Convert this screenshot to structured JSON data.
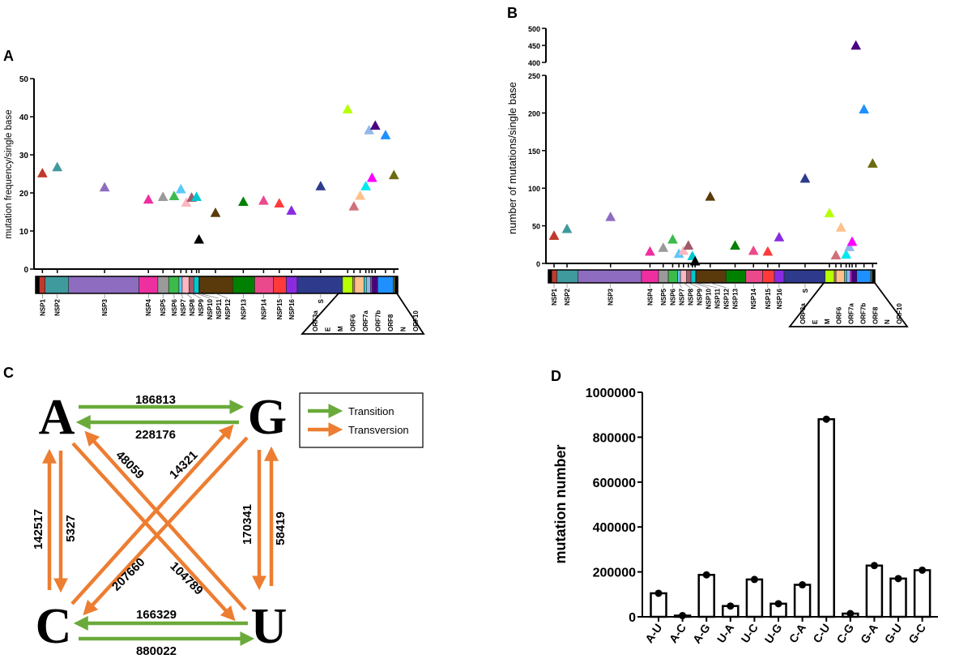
{
  "panel_labels": [
    "A",
    "B",
    "C",
    "D"
  ],
  "chart_data": [
    {
      "id": "A",
      "type": "scatter",
      "ylabel": "mutation frequency/single base",
      "ylim": [
        0,
        50
      ],
      "yticks": [
        0,
        10,
        20,
        30,
        40,
        50
      ],
      "genes": [
        {
          "name": "NSP1",
          "color": "#c0392b",
          "value": 25.2
        },
        {
          "name": "NSP2",
          "color": "#3f9a9e",
          "value": 26.8
        },
        {
          "name": "NSP3",
          "color": "#8e6cc0",
          "value": 21.5
        },
        {
          "name": "NSP4",
          "color": "#ee2fa0",
          "value": 18.3
        },
        {
          "name": "NSP5",
          "color": "#9a9a9a",
          "value": 19.0
        },
        {
          "name": "NSP6",
          "color": "#3cba4a",
          "value": 19.2
        },
        {
          "name": "NSP7",
          "color": "#5ac8fa",
          "value": 21.0
        },
        {
          "name": "NSP8",
          "color": "#ffb6c1",
          "value": 17.5
        },
        {
          "name": "NSP9",
          "color": "#a05a6a",
          "value": 18.8
        },
        {
          "name": "NSP10",
          "color": "#00c8d0",
          "value": 19.0
        },
        {
          "name": "NSP11",
          "color": "#000000",
          "value": 7.8
        },
        {
          "name": "NSP12",
          "color": "#5a3a0a",
          "value": 14.8
        },
        {
          "name": "NSP13",
          "color": "#008000",
          "value": 17.7
        },
        {
          "name": "NSP14",
          "color": "#ea4a8c",
          "value": 18.0
        },
        {
          "name": "NSP15",
          "color": "#ff3a3a",
          "value": 17.3
        },
        {
          "name": "NSP16",
          "color": "#8a2be2",
          "value": 15.4
        },
        {
          "name": "S",
          "color": "#2e3a8c",
          "value": 21.8
        },
        {
          "name": "ORF3a",
          "color": "#b6ff00",
          "value": 42.0
        },
        {
          "name": "E",
          "color": "#d0707a",
          "value": 16.5
        },
        {
          "name": "M",
          "color": "#ffc08a",
          "value": 19.3
        },
        {
          "name": "ORF6",
          "color": "#00e8f0",
          "value": 21.8
        },
        {
          "name": "ORF7a",
          "color": "#90b8e8",
          "value": 36.5
        },
        {
          "name": "ORF7b",
          "color": "#ff00ff",
          "value": 24.0
        },
        {
          "name": "ORF8",
          "color": "#4b0082",
          "value": 37.7
        },
        {
          "name": "N",
          "color": "#1e90ff",
          "value": 35.2
        },
        {
          "name": "ORF10",
          "color": "#6b6b10",
          "value": 24.7
        }
      ]
    },
    {
      "id": "B",
      "type": "scatter",
      "ylabel": "number of mutations/single base",
      "ylim": [
        0,
        500
      ],
      "axis_break": [
        250,
        400
      ],
      "yticks": [
        0,
        50,
        100,
        150,
        200,
        250,
        400,
        450,
        500
      ],
      "values": [
        37,
        46,
        62,
        16,
        21,
        32,
        13,
        17,
        24,
        10,
        3,
        89,
        24,
        17,
        16,
        35,
        113,
        67,
        11,
        48,
        12,
        22,
        29,
        450,
        205,
        133
      ]
    },
    {
      "id": "D",
      "type": "bar",
      "ylabel": "mutation number",
      "ylim": [
        0,
        1000000
      ],
      "yticks": [
        0,
        200000,
        400000,
        600000,
        800000,
        1000000
      ],
      "categories": [
        "A-U",
        "A-C",
        "A-G",
        "U-A",
        "U-C",
        "U-G",
        "C-A",
        "C-U",
        "C-G",
        "G-A",
        "G-U",
        "G-C"
      ],
      "values": [
        104789,
        5327,
        186813,
        48059,
        166329,
        58419,
        142517,
        880022,
        14321,
        228176,
        170341,
        207660
      ]
    }
  ],
  "diagram_c": {
    "nodes": [
      "A",
      "G",
      "C",
      "U"
    ],
    "edges": [
      {
        "from": "A",
        "to": "G",
        "value": "186813",
        "type": "transition"
      },
      {
        "from": "G",
        "to": "A",
        "value": "228176",
        "type": "transition"
      },
      {
        "from": "C",
        "to": "A",
        "value": "142517",
        "type": "transversion"
      },
      {
        "from": "A",
        "to": "C",
        "value": "5327",
        "type": "transversion"
      },
      {
        "from": "G",
        "to": "U",
        "value": "170341",
        "type": "transversion"
      },
      {
        "from": "U",
        "to": "G",
        "value": "58419",
        "type": "transversion"
      },
      {
        "from": "U",
        "to": "C",
        "value": "166329",
        "type": "transition"
      },
      {
        "from": "C",
        "to": "U",
        "value": "880022",
        "type": "transition"
      },
      {
        "from": "A",
        "to": "U",
        "value": "104789",
        "type": "transversion"
      },
      {
        "from": "U",
        "to": "A",
        "value": "48059",
        "type": "transversion"
      },
      {
        "from": "C",
        "to": "G",
        "value": "14321",
        "type": "transversion"
      },
      {
        "from": "G",
        "to": "C",
        "value": "207660",
        "type": "transversion"
      }
    ],
    "legend": [
      {
        "label": "Transition",
        "color": "#6aaa3a"
      },
      {
        "label": "Transversion",
        "color": "#ed7d31"
      }
    ]
  }
}
